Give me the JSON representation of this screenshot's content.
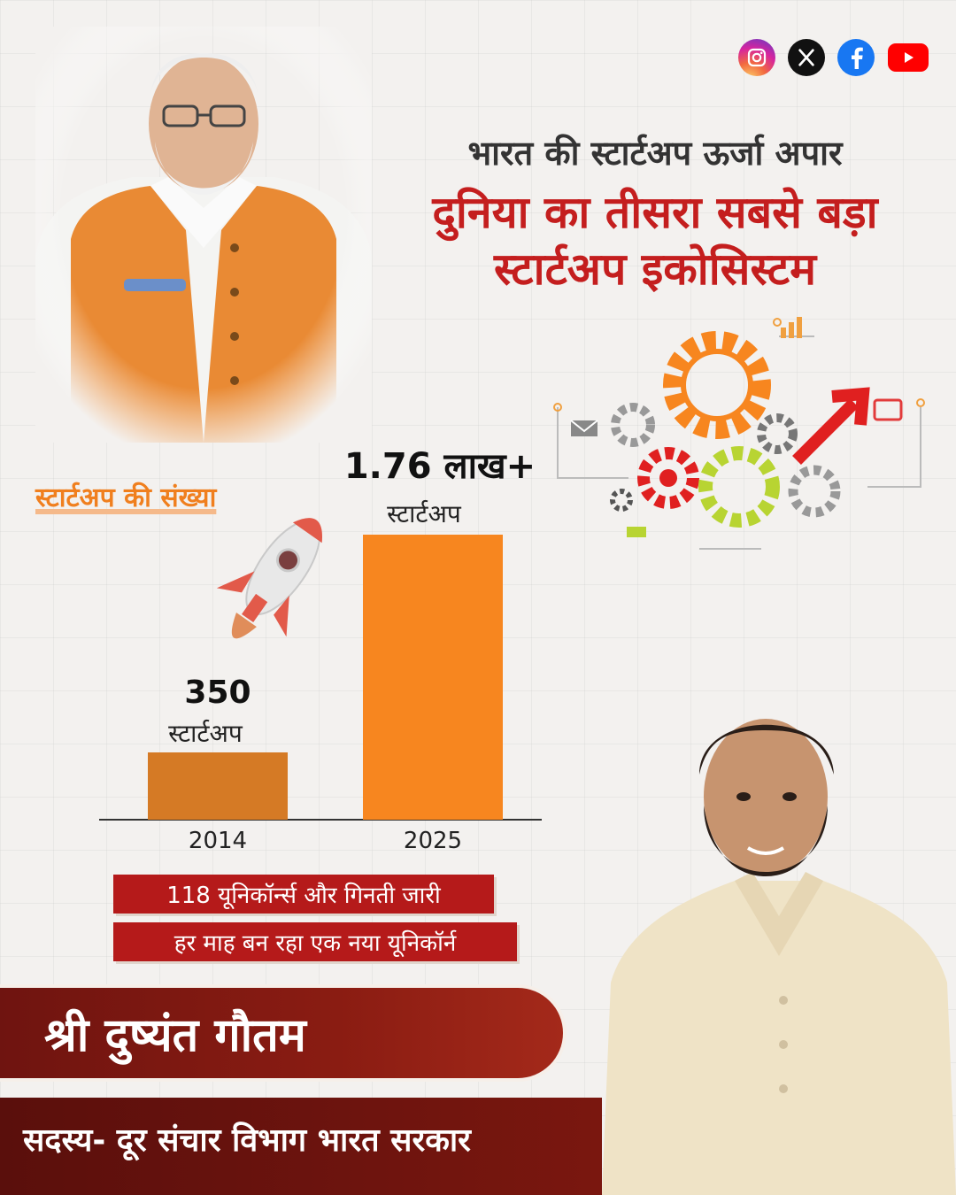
{
  "headline": {
    "line1": "भारत की स्टार्टअप ऊर्जा अपार",
    "line2": "दुनिया का तीसरा सबसे बड़ा",
    "line3": "स्टार्टअप इकोसिस्टम"
  },
  "social_icons": [
    "instagram-icon",
    "x-icon",
    "facebook-icon",
    "youtube-icon"
  ],
  "chart_title": "स्टार्टअप की संख्या",
  "chart_data": {
    "type": "bar",
    "title": "स्टार्टअप की संख्या",
    "categories": [
      "2014",
      "2025"
    ],
    "values": [
      350,
      176000
    ],
    "value_labels": [
      "350",
      "1.76 लाख+"
    ],
    "unit_label": "स्टार्टअप",
    "colors": [
      "#d57a25",
      "#f7861f"
    ],
    "note": ""
  },
  "banners": [
    "118 यूनिकॉर्न्स और गिनती जारी",
    "हर माह बन रहा एक नया यूनिकॉर्न"
  ],
  "person": {
    "name": "श्री दुष्यंत गौतम",
    "role": "सदस्य- दूर संचार विभाग भारत सरकार"
  },
  "colors": {
    "accent_red": "#c41e1e",
    "accent_orange": "#f7861f",
    "band_maroon": "#7a170f"
  }
}
